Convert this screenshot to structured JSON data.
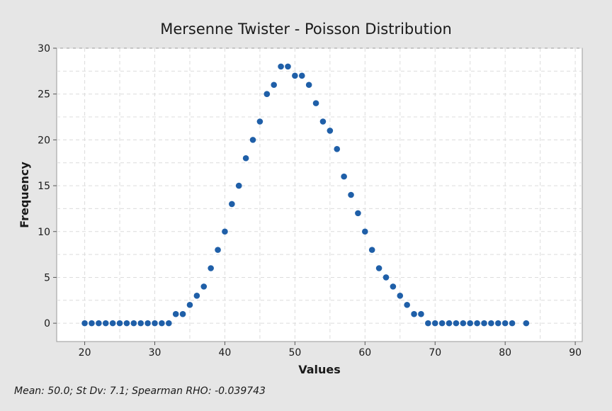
{
  "chart_data": {
    "type": "scatter",
    "title": "Mersenne Twister - Poisson Distribution",
    "xlabel": "Values",
    "ylabel": "Frequency",
    "xlim": [
      16,
      91
    ],
    "ylim": [
      -2,
      30
    ],
    "xticks": [
      20,
      30,
      40,
      50,
      60,
      70,
      80,
      90
    ],
    "yticks": [
      0,
      5,
      10,
      15,
      20,
      25,
      30
    ],
    "grid": true,
    "marker_color": "#1f5fa8",
    "x": [
      20,
      21,
      22,
      23,
      24,
      25,
      26,
      27,
      28,
      29,
      30,
      31,
      32,
      33,
      34,
      35,
      36,
      37,
      38,
      39,
      40,
      41,
      42,
      43,
      44,
      45,
      46,
      47,
      48,
      49,
      50,
      51,
      52,
      53,
      54,
      55,
      56,
      57,
      58,
      59,
      60,
      61,
      62,
      63,
      64,
      65,
      66,
      67,
      68,
      69,
      70,
      71,
      72,
      73,
      74,
      75,
      76,
      77,
      78,
      79,
      80,
      81,
      83
    ],
    "y": [
      0,
      0,
      0,
      0,
      0,
      0,
      0,
      0,
      0,
      0,
      0,
      0,
      0,
      1,
      1,
      2,
      3,
      4,
      6,
      8,
      10,
      13,
      15,
      18,
      20,
      22,
      25,
      26,
      28,
      28,
      27,
      27,
      26,
      24,
      22,
      21,
      19,
      16,
      14,
      12,
      10,
      8,
      6,
      5,
      4,
      3,
      2,
      1,
      1,
      0,
      0,
      0,
      0,
      0,
      0,
      0,
      0,
      0,
      0,
      0,
      0,
      0,
      0
    ]
  },
  "footer": {
    "stats": "Mean: 50.0; St Dv: 7.1; Spearman RHO: -0.039743"
  }
}
